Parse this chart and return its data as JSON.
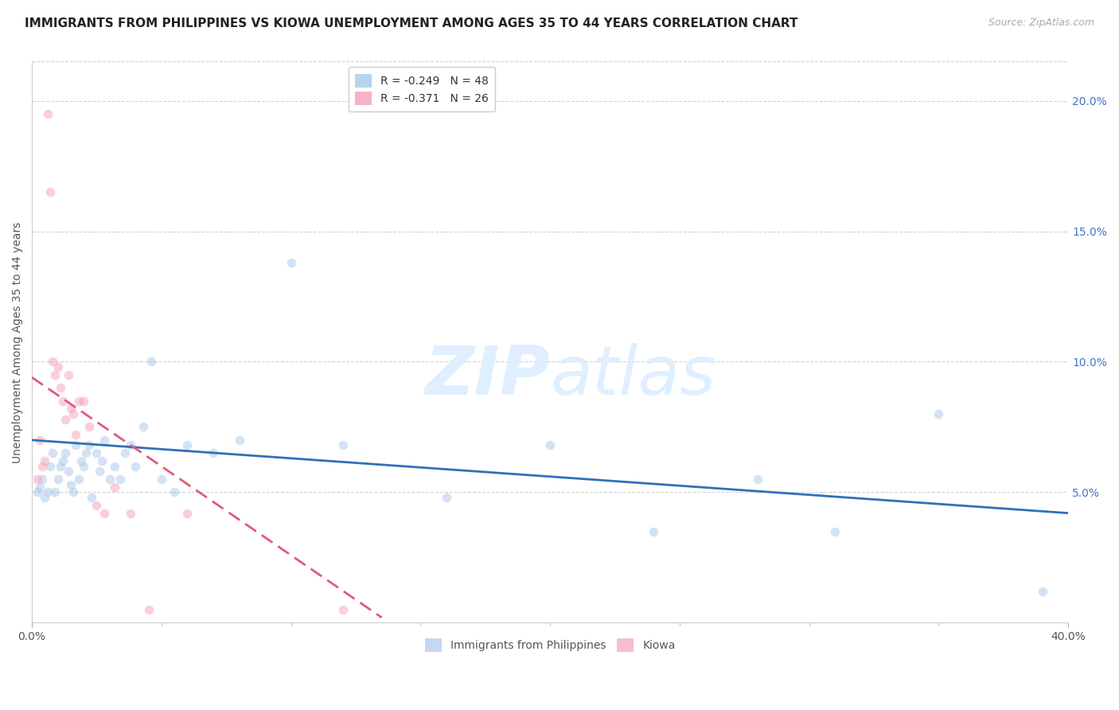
{
  "title": "IMMIGRANTS FROM PHILIPPINES VS KIOWA UNEMPLOYMENT AMONG AGES 35 TO 44 YEARS CORRELATION CHART",
  "source": "Source: ZipAtlas.com",
  "ylabel": "Unemployment Among Ages 35 to 44 years",
  "xlim": [
    0.0,
    0.4
  ],
  "ylim": [
    0.0,
    0.215
  ],
  "xtick_positions": [
    0.0,
    0.4
  ],
  "xticklabels": [
    "0.0%",
    "40.0%"
  ],
  "yticks_right": [
    0.05,
    0.1,
    0.15,
    0.2
  ],
  "ytick_right_labels": [
    "5.0%",
    "10.0%",
    "15.0%",
    "20.0%"
  ],
  "blue_R": -0.249,
  "blue_N": 48,
  "pink_R": -0.371,
  "pink_N": 26,
  "legend_label_blue": "Immigrants from Philippines",
  "legend_label_pink": "Kiowa",
  "blue_scatter_x": [
    0.002,
    0.003,
    0.004,
    0.005,
    0.006,
    0.007,
    0.008,
    0.009,
    0.01,
    0.011,
    0.012,
    0.013,
    0.014,
    0.015,
    0.016,
    0.017,
    0.018,
    0.019,
    0.02,
    0.021,
    0.022,
    0.023,
    0.025,
    0.026,
    0.027,
    0.028,
    0.03,
    0.032,
    0.034,
    0.036,
    0.038,
    0.04,
    0.043,
    0.046,
    0.05,
    0.055,
    0.06,
    0.07,
    0.08,
    0.1,
    0.12,
    0.16,
    0.2,
    0.24,
    0.28,
    0.31,
    0.35,
    0.39
  ],
  "blue_scatter_y": [
    0.05,
    0.052,
    0.055,
    0.048,
    0.05,
    0.06,
    0.065,
    0.05,
    0.055,
    0.06,
    0.062,
    0.065,
    0.058,
    0.053,
    0.05,
    0.068,
    0.055,
    0.062,
    0.06,
    0.065,
    0.068,
    0.048,
    0.065,
    0.058,
    0.062,
    0.07,
    0.055,
    0.06,
    0.055,
    0.065,
    0.068,
    0.06,
    0.075,
    0.1,
    0.055,
    0.05,
    0.068,
    0.065,
    0.07,
    0.138,
    0.068,
    0.048,
    0.068,
    0.035,
    0.055,
    0.035,
    0.08,
    0.012
  ],
  "pink_scatter_x": [
    0.002,
    0.003,
    0.004,
    0.005,
    0.006,
    0.007,
    0.008,
    0.009,
    0.01,
    0.011,
    0.012,
    0.013,
    0.014,
    0.015,
    0.016,
    0.017,
    0.018,
    0.02,
    0.022,
    0.025,
    0.028,
    0.032,
    0.038,
    0.045,
    0.06,
    0.12
  ],
  "pink_scatter_y": [
    0.055,
    0.07,
    0.06,
    0.062,
    0.195,
    0.165,
    0.1,
    0.095,
    0.098,
    0.09,
    0.085,
    0.078,
    0.095,
    0.082,
    0.08,
    0.072,
    0.085,
    0.085,
    0.075,
    0.045,
    0.042,
    0.052,
    0.042,
    0.005,
    0.042,
    0.005
  ],
  "blue_line_x": [
    0.0,
    0.4
  ],
  "blue_line_y": [
    0.07,
    0.042
  ],
  "pink_line_x": [
    0.0,
    0.135
  ],
  "pink_line_y": [
    0.094,
    0.002
  ],
  "background_color": "#ffffff",
  "scatter_alpha": 0.5,
  "scatter_size": 70,
  "blue_color": "#a8c8e8",
  "pink_color": "#f4a0b8",
  "blue_line_color": "#3070b8",
  "pink_line_color": "#e05880",
  "grid_color": "#d0d0d0",
  "watermark_color": "#ddeeff",
  "watermark_alpha": 0.9,
  "title_fontsize": 11,
  "axis_label_fontsize": 10,
  "tick_fontsize": 10,
  "legend_fontsize": 10,
  "source_fontsize": 9
}
